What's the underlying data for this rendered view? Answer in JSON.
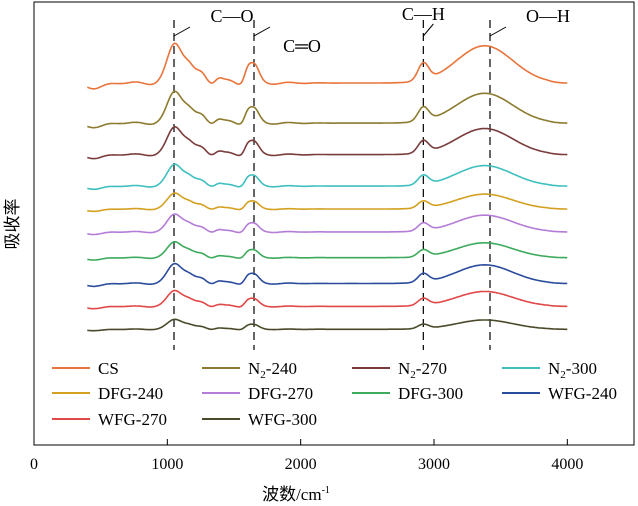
{
  "chart_data": {
    "type": "line",
    "title": "",
    "xlabel": "波数/cm",
    "xlabel_sup": "-1",
    "ylabel": "吸收率",
    "xlim": [
      0,
      4500
    ],
    "ylim": [
      0,
      110
    ],
    "xticks": [
      0,
      1000,
      2000,
      3000,
      4000
    ],
    "grid": false,
    "legend_position": "bottom",
    "peaks": [
      {
        "label": "C—O",
        "x": 1050
      },
      {
        "label": "C═O",
        "x": 1650
      },
      {
        "label": "C—H",
        "x": 2920
      },
      {
        "label": "O—H",
        "x": 3420
      }
    ],
    "series": [
      {
        "name": "CS",
        "label_main": "CS",
        "label_sub": "",
        "label_tail": "",
        "color": "#E8743B",
        "offset": 88,
        "amp": 1.0
      },
      {
        "name": "N2-240",
        "label_main": "N",
        "label_sub": "2",
        "label_tail": "-240",
        "color": "#8C7A2E",
        "offset": 74,
        "amp": 0.8
      },
      {
        "name": "N2-270",
        "label_main": "N",
        "label_sub": "2",
        "label_tail": "-270",
        "color": "#7A3B3B",
        "offset": 63,
        "amp": 0.7
      },
      {
        "name": "N2-300",
        "label_main": "N",
        "label_sub": "2",
        "label_tail": "-300",
        "color": "#3FBFBF",
        "offset": 52,
        "amp": 0.55
      },
      {
        "name": "DFG-240",
        "label_main": "DFG-240",
        "label_sub": "",
        "label_tail": "",
        "color": "#D4A020",
        "offset": 44,
        "amp": 0.4
      },
      {
        "name": "DFG-270",
        "label_main": "DFG-270",
        "label_sub": "",
        "label_tail": "",
        "color": "#B47CD6",
        "offset": 36,
        "amp": 0.45
      },
      {
        "name": "DFG-300",
        "label_main": "DFG-300",
        "label_sub": "",
        "label_tail": "",
        "color": "#3DAA5C",
        "offset": 27,
        "amp": 0.4
      },
      {
        "name": "WFG-240",
        "label_main": "WFG-240",
        "label_sub": "",
        "label_tail": "",
        "color": "#2B4C9C",
        "offset": 18,
        "amp": 0.5
      },
      {
        "name": "WFG-270",
        "label_main": "WFG-270",
        "label_sub": "",
        "label_tail": "",
        "color": "#E04848",
        "offset": 10,
        "amp": 0.4
      },
      {
        "name": "WFG-300",
        "label_main": "WFG-300",
        "label_sub": "",
        "label_tail": "",
        "color": "#4A4A2A",
        "offset": 2,
        "amp": 0.25
      }
    ]
  }
}
